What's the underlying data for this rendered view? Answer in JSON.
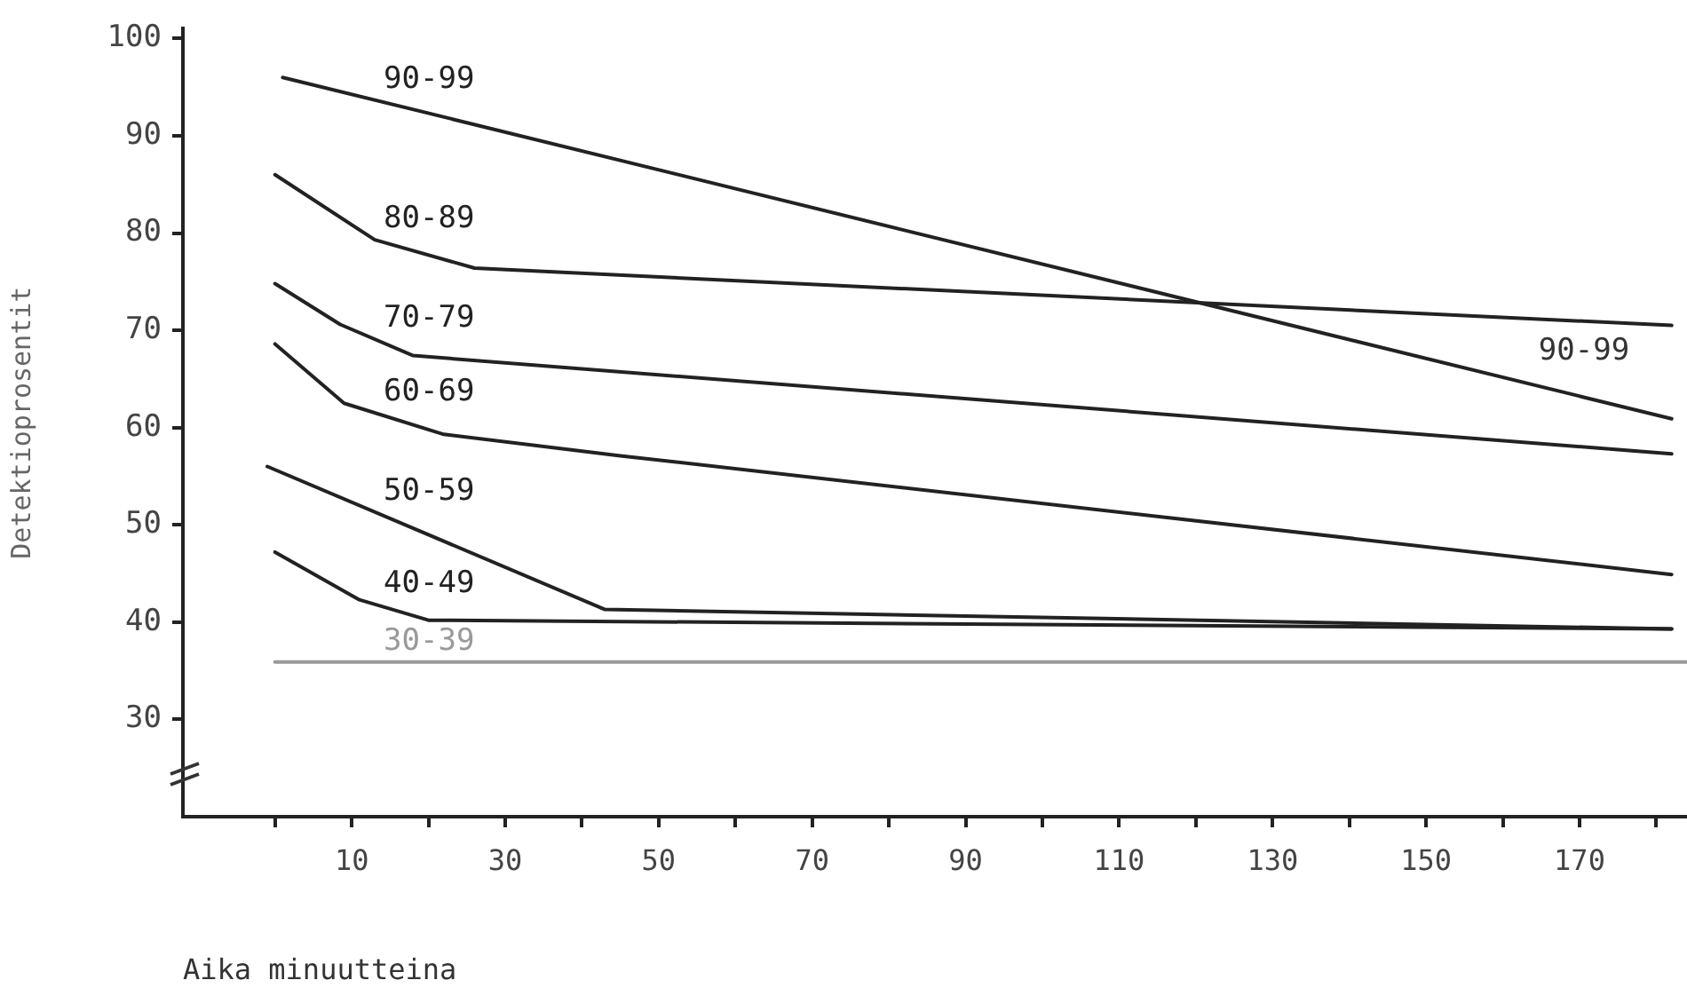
{
  "chart_data": {
    "type": "line",
    "xlabel": "Aika minuutteina",
    "ylabel": "Detektioprosentit",
    "xlim": [
      -12,
      184
    ],
    "ylim": [
      20,
      101
    ],
    "xticks": [
      {
        "value": 0,
        "label": null
      },
      10,
      {
        "value": 20,
        "label": null
      },
      30,
      {
        "value": 40,
        "label": null
      },
      50,
      {
        "value": 60,
        "label": null
      },
      70,
      {
        "value": 80,
        "label": null
      },
      90,
      {
        "value": 100,
        "label": null
      },
      110,
      {
        "value": 120,
        "label": null
      },
      130,
      {
        "value": 140,
        "label": null
      },
      150,
      {
        "value": 160,
        "label": null
      },
      170,
      {
        "value": 180,
        "label": null
      }
    ],
    "yticks": [
      30,
      40,
      50,
      60,
      70,
      80,
      90,
      100
    ],
    "grid": false,
    "legend": false,
    "marker": "none",
    "line_style": "solid",
    "annotations": [
      "90-99"
    ],
    "series": [
      {
        "name": "90-99",
        "color": "#222222",
        "x": [
          1,
          182
        ],
        "values": [
          96.0,
          60.9
        ]
      },
      {
        "name": "80-89",
        "color": "#222222",
        "x": [
          0,
          13,
          26,
          182
        ],
        "values": [
          86.0,
          79.3,
          76.4,
          70.5
        ]
      },
      {
        "name": "70-79",
        "color": "#222222",
        "x": [
          0,
          8.5,
          18,
          182
        ],
        "values": [
          74.8,
          70.6,
          67.4,
          57.3
        ]
      },
      {
        "name": "60-69",
        "color": "#222222",
        "x": [
          0,
          9,
          22,
          45,
          182
        ],
        "values": [
          68.6,
          62.5,
          59.3,
          57.1,
          44.9
        ]
      },
      {
        "name": "50-59",
        "color": "#222222",
        "x": [
          -1,
          43,
          182
        ],
        "values": [
          56.0,
          41.3,
          39.3
        ]
      },
      {
        "name": "40-49",
        "color": "#222222",
        "x": [
          0,
          11,
          20,
          182
        ],
        "values": [
          47.2,
          42.3,
          40.2,
          39.3
        ]
      },
      {
        "name": "30-39",
        "color": "#999999",
        "x": [
          0,
          184
        ],
        "values": [
          35.9,
          35.9
        ]
      }
    ]
  }
}
